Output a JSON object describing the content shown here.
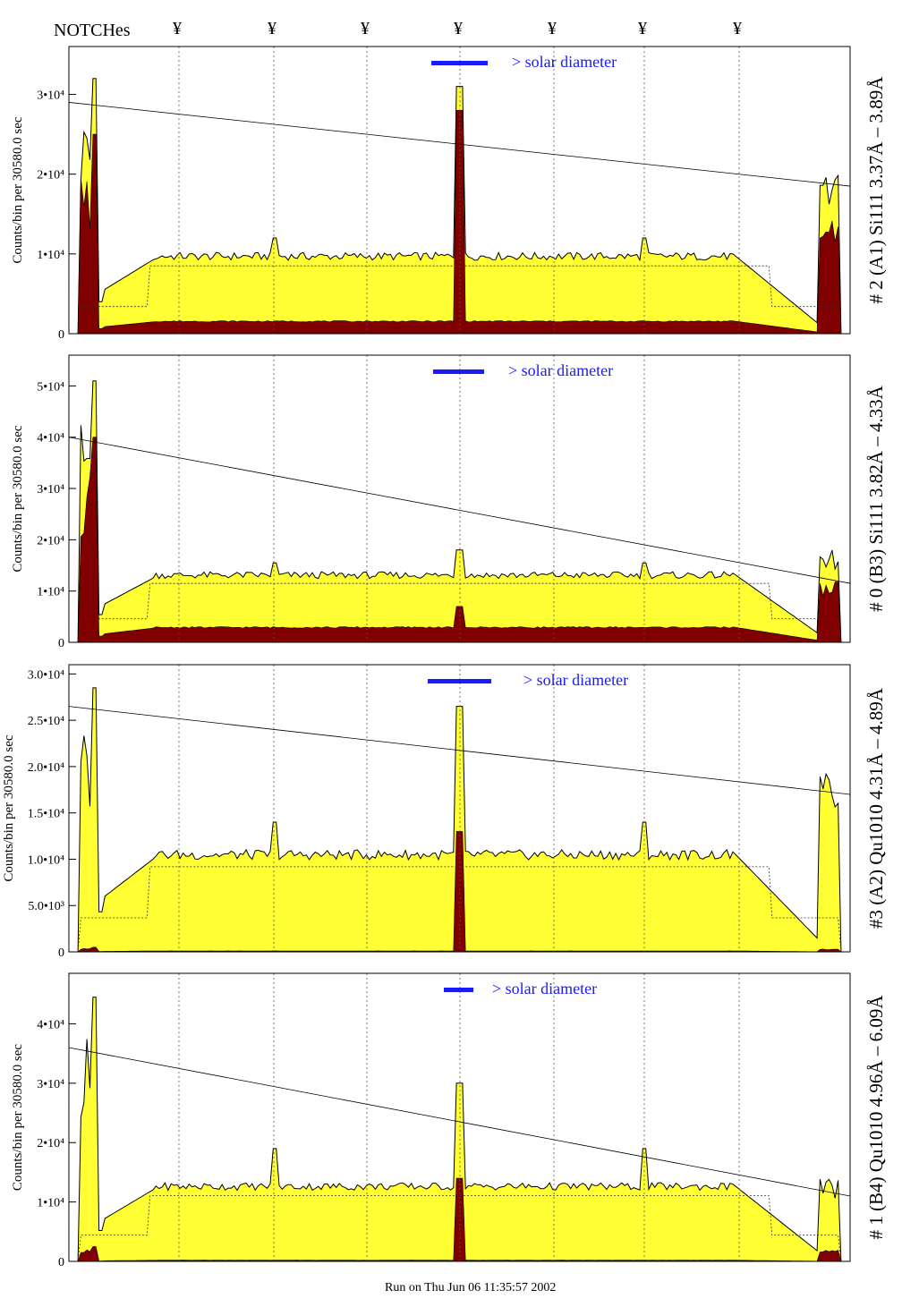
{
  "header": {
    "notches_label": "NOTCHes",
    "notch_mark": "¥",
    "notch_count": 7
  },
  "footer": {
    "run_text": "Run on Thu Jun 06 11:35:57 2002"
  },
  "colors": {
    "total_fill": "#ffff33",
    "signal_fill": "#800000",
    "solar_bar": "#1a1aff",
    "frame": "#000000"
  },
  "chart_data": [
    {
      "type": "area",
      "right_label": "# 2 (A1) Si111  3.37Å – 3.89Å",
      "ylabel": "Counts/bin per  30580.0 sec",
      "yticks": [
        "0",
        "1•10⁴",
        "2•10⁴",
        "3•10⁴"
      ],
      "ylim": [
        0,
        36000
      ],
      "solar_label": "> solar diameter",
      "total_profile": {
        "edge_peak": 32000,
        "edge_peak_right": 20500,
        "plateau": 10000,
        "center_peak": 31000,
        "notch_spike": 12000
      },
      "signal_profile": {
        "edge_peak": 25000,
        "edge_peak_right": 14500,
        "plateau": 1600,
        "center_peak": 28000
      },
      "trend_line": [
        29000,
        18500
      ]
    },
    {
      "type": "area",
      "right_label": "# 0 (B3) Si111  3.82Å – 4.33Å",
      "ylabel": "Counts/bin per  30580.0 sec",
      "yticks": [
        "0",
        "1•10⁴",
        "2•10⁴",
        "3•10⁴",
        "4•10⁴",
        "5•10⁴"
      ],
      "ylim": [
        0,
        56000
      ],
      "solar_label": "> solar diameter",
      "total_profile": {
        "edge_peak": 51000,
        "edge_peak_right": 18000,
        "plateau": 13500,
        "center_peak": 18000,
        "notch_spike": 15500
      },
      "signal_profile": {
        "edge_peak": 40000,
        "edge_peak_right": 12000,
        "plateau": 3000,
        "center_peak": 7000
      },
      "trend_line": [
        40000,
        11500
      ]
    },
    {
      "type": "area",
      "right_label": "#3 (A2) Qu1010  4.31Å – 4.89Å",
      "ylabel": "Counts/bin per  30580.0 sec",
      "yticks": [
        "0",
        "5.0•10³",
        "1.0•10⁴",
        "1.5•10⁴",
        "2.0•10⁴",
        "2.5•10⁴",
        "3.0•10⁴"
      ],
      "ylim": [
        0,
        31000
      ],
      "solar_label": "> solar diameter",
      "total_profile": {
        "edge_peak": 28500,
        "edge_peak_right": 20500,
        "plateau": 10800,
        "center_peak": 26500,
        "notch_spike": 14000
      },
      "signal_profile": {
        "edge_peak": 500,
        "edge_peak_right": 300,
        "plateau": 100,
        "center_peak": 13000
      },
      "trend_line": [
        26500,
        17000
      ]
    },
    {
      "type": "area",
      "right_label": "# 1 (B4) Qu1010 4.96Å – 6.09Å",
      "ylabel": "Counts/bin per  30580.0 sec",
      "yticks": [
        "0",
        "1•10⁴",
        "2•10⁴",
        "3•10⁴",
        "4•10⁴"
      ],
      "ylim": [
        0,
        48500
      ],
      "solar_label": "> solar diameter",
      "total_profile": {
        "edge_peak": 44500,
        "edge_peak_right": 14000,
        "plateau": 13000,
        "center_peak": 30000,
        "notch_spike": 19000
      },
      "signal_profile": {
        "edge_peak": 2500,
        "edge_peak_right": 2000,
        "plateau": 200,
        "center_peak": 14000
      },
      "trend_line": [
        36000,
        11000
      ]
    }
  ]
}
